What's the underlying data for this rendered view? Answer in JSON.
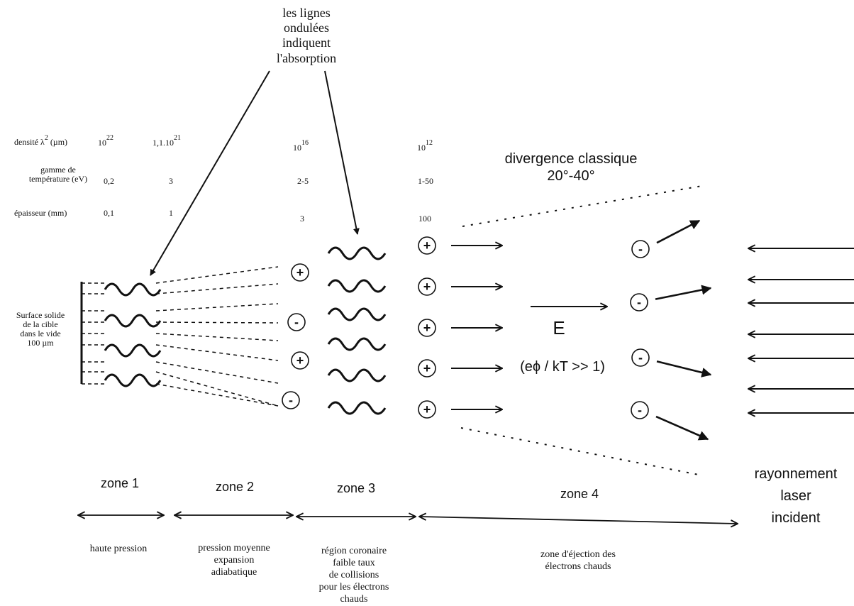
{
  "annotation": [
    "les lignes",
    "ondulées",
    "indiquent",
    "l'absorption"
  ],
  "properties": {
    "density_label": "densité λ",
    "density_label_sup": "2",
    "density_label_unit": "(µm)",
    "density_values": [
      {
        "base": "10",
        "sup": "22"
      },
      {
        "base": "1,1.10",
        "sup": "21"
      },
      {
        "base": "10",
        "sup": "16"
      },
      {
        "base": "10",
        "sup": "12"
      }
    ],
    "temperature_label": [
      "gamme de",
      "température (eV)"
    ],
    "temperature_values": [
      "0,2",
      "3",
      "2-5",
      "1-50"
    ],
    "thickness_label": "épaisseur (mm)",
    "thickness_values": [
      "0,1",
      "1",
      "3",
      "100"
    ]
  },
  "target_label": [
    "Surface solide",
    "de la cible",
    "dans le vide",
    "100 µm"
  ],
  "divergence": [
    "divergence classique",
    "20°-40°"
  ],
  "field": {
    "label": "E",
    "condition": "(eϕ / kT >> 1)"
  },
  "signs": {
    "plus": "+",
    "minus": "-"
  },
  "laser": [
    "rayonnement",
    "laser",
    "incident"
  ],
  "zones": [
    {
      "name": "zone 1",
      "desc": [
        "haute pression"
      ]
    },
    {
      "name": "zone 2",
      "desc": [
        "pression moyenne",
        "expansion",
        "adiabatique"
      ]
    },
    {
      "name": "zone 3",
      "desc": [
        "région coronaire",
        "faible taux",
        "de collisions",
        "pour les électrons",
        "chauds"
      ]
    },
    {
      "name": "zone 4",
      "desc": [
        "zone d'éjection des",
        "électrons chauds"
      ]
    }
  ]
}
